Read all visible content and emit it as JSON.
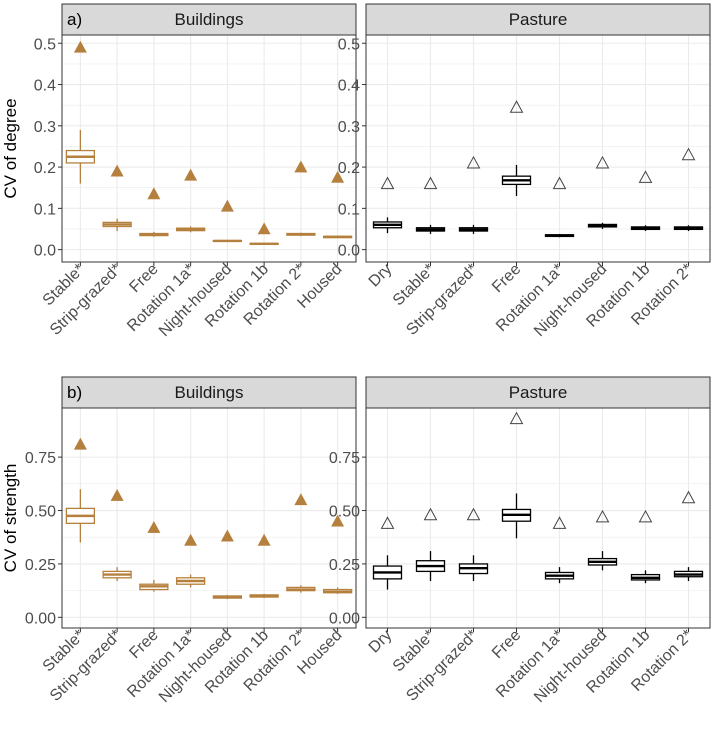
{
  "colors": {
    "buildings": "#b5803d",
    "pasture": "#000000",
    "strip_bg": "#d9d9d9",
    "grid": "#ebebeb",
    "tick_text": "#4d4d4d"
  },
  "chart_data": [
    {
      "type": "box",
      "panel_tag": "a)",
      "title": "Buildings",
      "ylabel": "CV of degree",
      "ylim": [
        -0.03,
        0.52
      ],
      "yticks": [
        0.0,
        0.1,
        0.2,
        0.3,
        0.4,
        0.5
      ],
      "ytick_labels": [
        "0.0",
        "0.1",
        "0.2",
        "0.3",
        "0.4",
        "0.5"
      ],
      "marker": "filled-triangle",
      "categories": [
        "Stable*",
        "Strip-grazed*",
        "Free",
        "Rotation 1a*",
        "Night-housed",
        "Rotation 1b",
        "Rotation 2*",
        "Housed"
      ],
      "boxes": [
        {
          "min": 0.16,
          "q1": 0.21,
          "median": 0.225,
          "q3": 0.24,
          "max": 0.29
        },
        {
          "min": 0.045,
          "q1": 0.056,
          "median": 0.061,
          "q3": 0.066,
          "max": 0.075
        },
        {
          "min": 0.031,
          "q1": 0.034,
          "median": 0.036,
          "q3": 0.039,
          "max": 0.043
        },
        {
          "min": 0.042,
          "q1": 0.046,
          "median": 0.049,
          "q3": 0.052,
          "max": 0.056
        },
        {
          "min": 0.019,
          "q1": 0.02,
          "median": 0.021,
          "q3": 0.022,
          "max": 0.023
        },
        {
          "min": 0.012,
          "q1": 0.013,
          "median": 0.014,
          "q3": 0.015,
          "max": 0.016
        },
        {
          "min": 0.033,
          "q1": 0.035,
          "median": 0.037,
          "q3": 0.039,
          "max": 0.041
        },
        {
          "min": 0.028,
          "q1": 0.029,
          "median": 0.031,
          "q3": 0.032,
          "max": 0.034
        }
      ],
      "points": [
        0.49,
        0.19,
        0.135,
        0.18,
        0.105,
        0.05,
        0.2,
        0.175
      ]
    },
    {
      "type": "box",
      "panel_tag": "",
      "title": "Pasture",
      "ylabel": "",
      "ylim": [
        -0.03,
        0.52
      ],
      "yticks": [
        0.0,
        0.1,
        0.2,
        0.3,
        0.4,
        0.5
      ],
      "ytick_labels": [
        "0.0",
        "0.1",
        "0.2",
        "0.3",
        "0.4",
        "0.5"
      ],
      "marker": "open-triangle",
      "categories": [
        "Dry",
        "Stable*",
        "Strip-grazed*",
        "Free",
        "Rotation 1a*",
        "Night-housed",
        "Rotation 1b",
        "Rotation 2*"
      ],
      "boxes": [
        {
          "min": 0.04,
          "q1": 0.053,
          "median": 0.06,
          "q3": 0.067,
          "max": 0.078
        },
        {
          "min": 0.038,
          "q1": 0.045,
          "median": 0.049,
          "q3": 0.053,
          "max": 0.06
        },
        {
          "min": 0.038,
          "q1": 0.045,
          "median": 0.049,
          "q3": 0.053,
          "max": 0.06
        },
        {
          "min": 0.13,
          "q1": 0.158,
          "median": 0.168,
          "q3": 0.178,
          "max": 0.205
        },
        {
          "min": 0.03,
          "q1": 0.032,
          "median": 0.034,
          "q3": 0.036,
          "max": 0.038
        },
        {
          "min": 0.05,
          "q1": 0.055,
          "median": 0.058,
          "q3": 0.061,
          "max": 0.065
        },
        {
          "min": 0.045,
          "q1": 0.049,
          "median": 0.052,
          "q3": 0.055,
          "max": 0.059
        },
        {
          "min": 0.045,
          "q1": 0.049,
          "median": 0.052,
          "q3": 0.055,
          "max": 0.059
        }
      ],
      "points": [
        0.16,
        0.16,
        0.21,
        0.345,
        0.16,
        0.21,
        0.175,
        0.23
      ]
    },
    {
      "type": "box",
      "panel_tag": "b)",
      "title": "Buildings",
      "ylabel": "CV of strength",
      "ylim": [
        -0.05,
        0.98
      ],
      "yticks": [
        0.0,
        0.25,
        0.5,
        0.75
      ],
      "ytick_labels": [
        "0.00",
        "0.25",
        "0.50",
        "0.75"
      ],
      "marker": "filled-triangle",
      "categories": [
        "Stable*",
        "Strip-grazed*",
        "Free",
        "Rotation 1a*",
        "Night-housed",
        "Rotation 1b",
        "Rotation 2*",
        "Housed"
      ],
      "boxes": [
        {
          "min": 0.35,
          "q1": 0.44,
          "median": 0.475,
          "q3": 0.51,
          "max": 0.6
        },
        {
          "min": 0.17,
          "q1": 0.185,
          "median": 0.2,
          "q3": 0.215,
          "max": 0.235
        },
        {
          "min": 0.12,
          "q1": 0.13,
          "median": 0.145,
          "q3": 0.155,
          "max": 0.175
        },
        {
          "min": 0.14,
          "q1": 0.155,
          "median": 0.17,
          "q3": 0.185,
          "max": 0.2
        },
        {
          "min": 0.085,
          "q1": 0.09,
          "median": 0.095,
          "q3": 0.1,
          "max": 0.105
        },
        {
          "min": 0.09,
          "q1": 0.095,
          "median": 0.1,
          "q3": 0.105,
          "max": 0.11
        },
        {
          "min": 0.115,
          "q1": 0.125,
          "median": 0.13,
          "q3": 0.14,
          "max": 0.15
        },
        {
          "min": 0.11,
          "q1": 0.115,
          "median": 0.12,
          "q3": 0.13,
          "max": 0.14
        }
      ],
      "points": [
        0.81,
        0.57,
        0.42,
        0.36,
        0.38,
        0.36,
        0.55,
        0.45
      ]
    },
    {
      "type": "box",
      "panel_tag": "",
      "title": "Pasture",
      "ylabel": "",
      "ylim": [
        -0.05,
        0.98
      ],
      "yticks": [
        0.0,
        0.25,
        0.5,
        0.75
      ],
      "ytick_labels": [
        "0.00",
        "0.25",
        "0.50",
        "0.75"
      ],
      "marker": "open-triangle",
      "categories": [
        "Dry",
        "Stable*",
        "Strip-grazed*",
        "Free",
        "Rotation 1a*",
        "Night-housed",
        "Rotation 1b",
        "Rotation 2*"
      ],
      "boxes": [
        {
          "min": 0.13,
          "q1": 0.18,
          "median": 0.21,
          "q3": 0.24,
          "max": 0.29
        },
        {
          "min": 0.17,
          "q1": 0.215,
          "median": 0.24,
          "q3": 0.265,
          "max": 0.31
        },
        {
          "min": 0.17,
          "q1": 0.205,
          "median": 0.23,
          "q3": 0.25,
          "max": 0.29
        },
        {
          "min": 0.37,
          "q1": 0.45,
          "median": 0.48,
          "q3": 0.505,
          "max": 0.58
        },
        {
          "min": 0.16,
          "q1": 0.18,
          "median": 0.195,
          "q3": 0.21,
          "max": 0.235
        },
        {
          "min": 0.22,
          "q1": 0.245,
          "median": 0.26,
          "q3": 0.275,
          "max": 0.31
        },
        {
          "min": 0.16,
          "q1": 0.175,
          "median": 0.185,
          "q3": 0.2,
          "max": 0.22
        },
        {
          "min": 0.17,
          "q1": 0.19,
          "median": 0.2,
          "q3": 0.215,
          "max": 0.235
        }
      ],
      "points": [
        0.44,
        0.48,
        0.48,
        0.93,
        0.44,
        0.47,
        0.47,
        0.56
      ]
    }
  ]
}
